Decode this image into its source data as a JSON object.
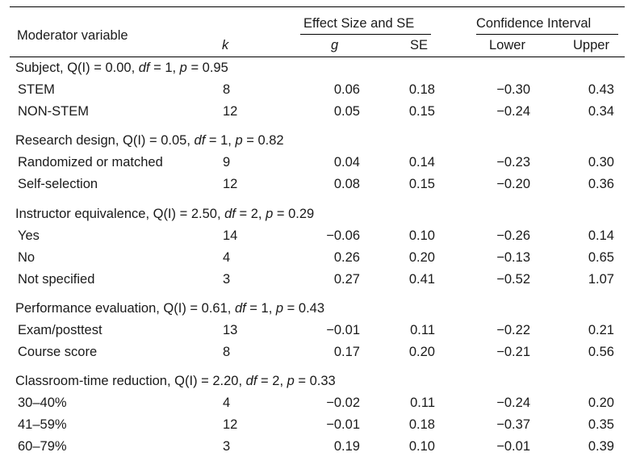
{
  "header": {
    "moderator_variable": "Moderator variable",
    "k": "k",
    "effect_size_group": "Effect Size and SE",
    "g": "g",
    "se": "SE",
    "ci_group": "Confidence Interval",
    "lower": "Lower",
    "upper": "Upper"
  },
  "groups": [
    {
      "name": "Subject",
      "stats": {
        "q": "0.00",
        "df": "1",
        "p": "0.95"
      },
      "rows": [
        {
          "label": "STEM",
          "k": "8",
          "g": "0.06",
          "se": "0.18",
          "lower": "−0.30",
          "upper": "0.43"
        },
        {
          "label": "NON-STEM",
          "k": "12",
          "g": "0.05",
          "se": "0.15",
          "lower": "−0.24",
          "upper": "0.34"
        }
      ]
    },
    {
      "name": "Research design",
      "stats": {
        "q": "0.05",
        "df": "1",
        "p": "0.82"
      },
      "rows": [
        {
          "label": "Randomized or matched",
          "k": "9",
          "g": "0.04",
          "se": "0.14",
          "lower": "−0.23",
          "upper": "0.30"
        },
        {
          "label": "Self-selection",
          "k": "12",
          "g": "0.08",
          "se": "0.15",
          "lower": "−0.20",
          "upper": "0.36"
        }
      ]
    },
    {
      "name": "Instructor equivalence",
      "stats": {
        "q": "2.50",
        "df": "2",
        "p": "0.29"
      },
      "rows": [
        {
          "label": "Yes",
          "k": "14",
          "g": "−0.06",
          "se": "0.10",
          "lower": "−0.26",
          "upper": "0.14"
        },
        {
          "label": "No",
          "k": "4",
          "g": "0.26",
          "se": "0.20",
          "lower": "−0.13",
          "upper": "0.65"
        },
        {
          "label": "Not specified",
          "k": "3",
          "g": "0.27",
          "se": "0.41",
          "lower": "−0.52",
          "upper": "1.07"
        }
      ]
    },
    {
      "name": "Performance evaluation",
      "stats": {
        "q": "0.61",
        "df": "1",
        "p": "0.43"
      },
      "rows": [
        {
          "label": "Exam/posttest",
          "k": "13",
          "g": "−0.01",
          "se": "0.11",
          "lower": "−0.22",
          "upper": "0.21"
        },
        {
          "label": "Course score",
          "k": "8",
          "g": "0.17",
          "se": "0.20",
          "lower": "−0.21",
          "upper": "0.56"
        }
      ]
    },
    {
      "name": "Classroom-time reduction",
      "stats": {
        "q": "2.20",
        "df": "2",
        "p": "0.33"
      },
      "rows": [
        {
          "label": "30–40%",
          "k": "4",
          "g": "−0.02",
          "se": "0.11",
          "lower": "−0.24",
          "upper": "0.20"
        },
        {
          "label": "41–59%",
          "k": "12",
          "g": "−0.01",
          "se": "0.18",
          "lower": "−0.37",
          "upper": "0.35"
        },
        {
          "label": "60–79%",
          "k": "3",
          "g": "0.19",
          "se": "0.10",
          "lower": "−0.01",
          "upper": "0.39"
        }
      ]
    }
  ]
}
